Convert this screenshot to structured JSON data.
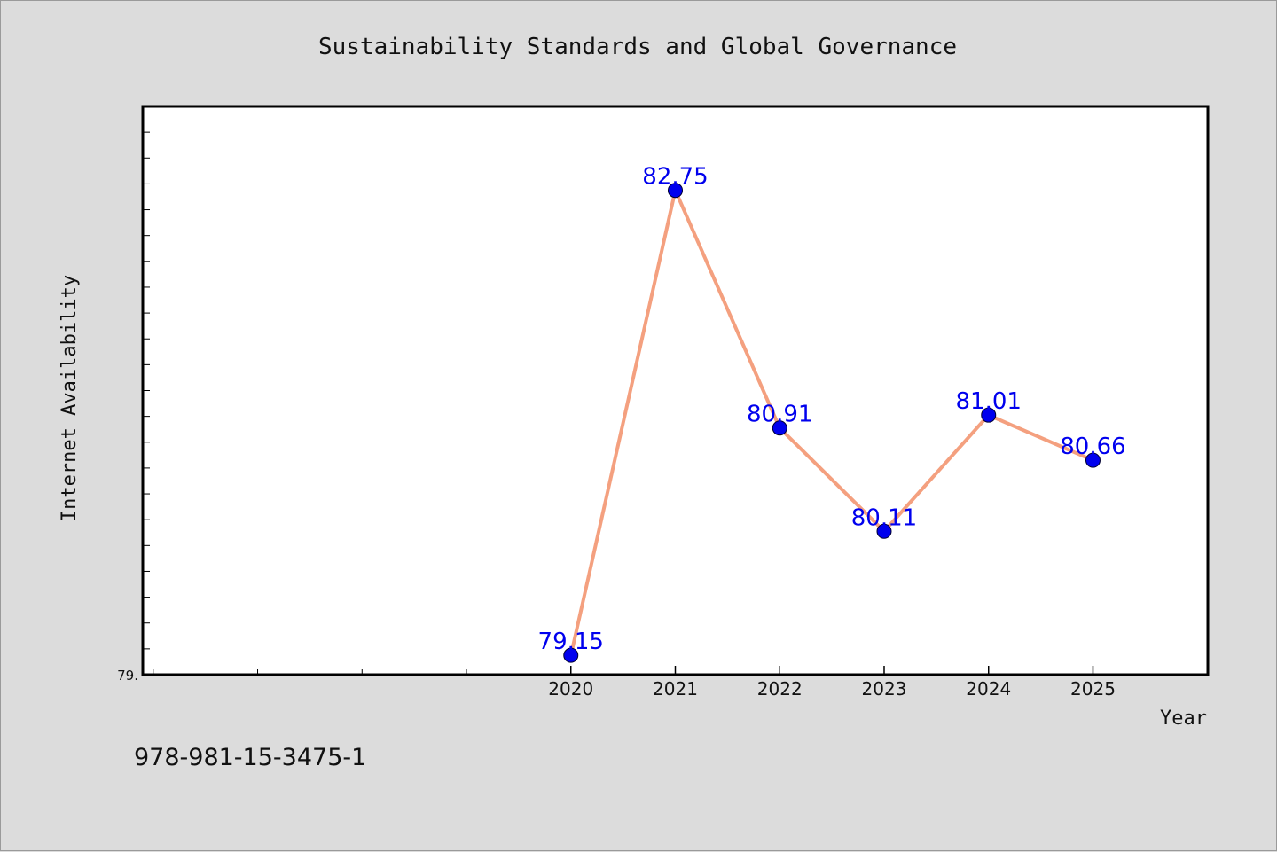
{
  "chart_data": {
    "type": "line",
    "title": "Sustainability Standards and Global Governance",
    "xlabel": "Year",
    "ylabel": "Internet Availability",
    "x": [
      2020,
      2021,
      2022,
      2023,
      2024,
      2025
    ],
    "series": [
      {
        "values": [
          79.15,
          82.75,
          80.91,
          80.11,
          81.01,
          80.66
        ],
        "labels": [
          "79.15",
          "82.75",
          "80.91",
          "80.11",
          "81.01",
          "80.66"
        ]
      }
    ],
    "x_tick_labels": [
      "2020",
      "2021",
      "2022",
      "2023",
      "2024",
      "2025"
    ],
    "y_tick_label": "79.",
    "xlim": [
      2015.9,
      2026.1
    ],
    "ylim": [
      79.0,
      83.4
    ],
    "grid": false,
    "line_color": "#f4a07f",
    "marker_color": "#0000ee",
    "label_color": "#0000ee"
  },
  "footer": {
    "isbn": "978-981-15-3475-1"
  }
}
